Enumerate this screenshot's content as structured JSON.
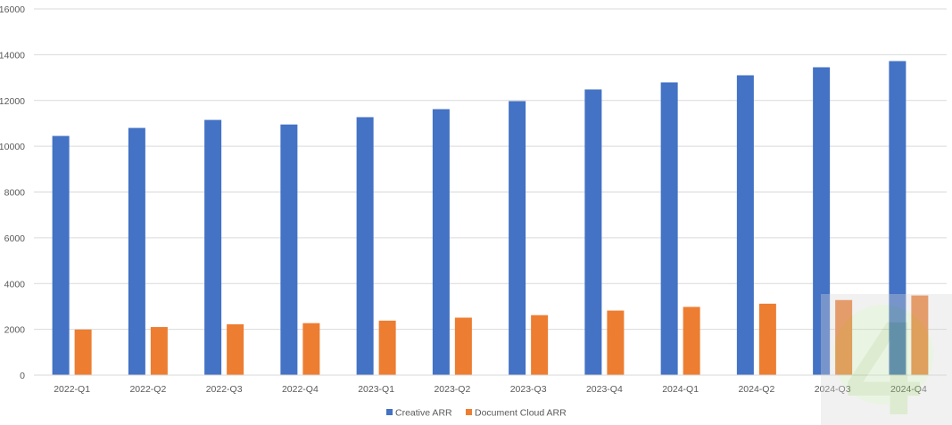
{
  "chart_data": {
    "type": "bar",
    "title": "",
    "xlabel": "",
    "ylabel": "",
    "categories": [
      "2022-Q1",
      "2022-Q2",
      "2022-Q3",
      "2022-Q4",
      "2023-Q1",
      "2023-Q2",
      "2023-Q3",
      "2023-Q4",
      "2024-Q1",
      "2024-Q2",
      "2024-Q3",
      "2024-Q4"
    ],
    "series": [
      {
        "name": "Creative ARR",
        "color": "#4472c4",
        "values": [
          10450,
          10800,
          11150,
          10950,
          11270,
          11620,
          11970,
          12480,
          12790,
          13100,
          13450,
          13720
        ]
      },
      {
        "name": "Document Cloud ARR",
        "color": "#ed7d31",
        "values": [
          1990,
          2100,
          2220,
          2270,
          2380,
          2510,
          2620,
          2820,
          2980,
          3120,
          3280,
          3480
        ]
      }
    ],
    "ylim": [
      0,
      16000
    ],
    "yticks": [
      "0",
      "2000",
      "4000",
      "6000",
      "8000",
      "10000",
      "12000",
      "14000",
      "16000"
    ],
    "grid": true,
    "legend_position": "bottom"
  },
  "watermark": {
    "glyph": "4",
    "color": "#9fc87a"
  }
}
